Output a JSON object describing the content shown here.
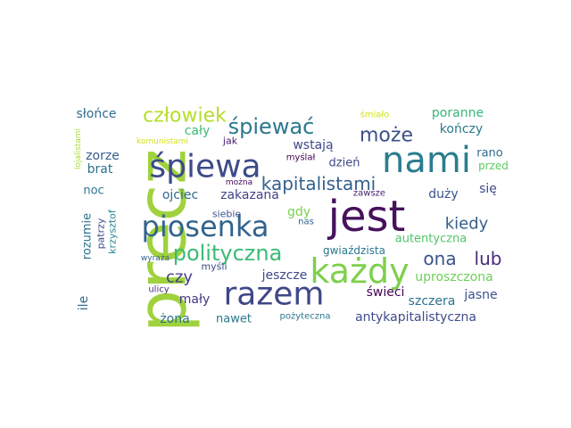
{
  "words": [
    {
      "text": "precz",
      "color": "#9fd23c"
    },
    {
      "text": "jest",
      "color": "#46125c"
    },
    {
      "text": "nami",
      "color": "#2b7d8e"
    },
    {
      "text": "śpiewa",
      "color": "#3e4b8a"
    },
    {
      "text": "każdy",
      "color": "#7ed04b"
    },
    {
      "text": "razem",
      "color": "#3f4788"
    },
    {
      "text": "piosenka",
      "color": "#33648d"
    },
    {
      "text": "polityczna",
      "color": "#3bbb75"
    },
    {
      "text": "śpiewać",
      "color": "#2a788e"
    },
    {
      "text": "kapitalistami",
      "color": "#34608d"
    },
    {
      "text": "człowiek",
      "color": "#b5de2b"
    },
    {
      "text": "może",
      "color": "#3c4f8a"
    },
    {
      "text": "kiedy",
      "color": "#355f8d"
    },
    {
      "text": "ona",
      "color": "#3b528b"
    },
    {
      "text": "lub",
      "color": "#472c7a"
    },
    {
      "text": "czy",
      "color": "#433e85"
    },
    {
      "text": "słońce",
      "color": "#2f6c8e"
    },
    {
      "text": "poranne",
      "color": "#35b779"
    },
    {
      "text": "kończy",
      "color": "#2a788e"
    },
    {
      "text": "cały",
      "color": "#3dbc74"
    },
    {
      "text": "zorze",
      "color": "#355e8d"
    },
    {
      "text": "brat",
      "color": "#2c738e"
    },
    {
      "text": "wstają",
      "color": "#3f4889"
    },
    {
      "text": "dzień",
      "color": "#3e4989"
    },
    {
      "text": "rano",
      "color": "#2f6c8e"
    },
    {
      "text": "przed",
      "color": "#5ec962"
    },
    {
      "text": "się",
      "color": "#3e4a89"
    },
    {
      "text": "noc",
      "color": "#2a768e"
    },
    {
      "text": "ojciec",
      "color": "#31688e"
    },
    {
      "text": "zakazana",
      "color": "#414487"
    },
    {
      "text": "duży",
      "color": "#3a548c"
    },
    {
      "text": "jak",
      "color": "#48186a"
    },
    {
      "text": "myślał",
      "color": "#440154"
    },
    {
      "text": "siebie",
      "color": "#3b528b"
    },
    {
      "text": "zawsze",
      "color": "#482173"
    },
    {
      "text": "gdy",
      "color": "#7ad151"
    },
    {
      "text": "nas",
      "color": "#31688e"
    },
    {
      "text": "rozumie",
      "color": "#2d708e"
    },
    {
      "text": "patrzy",
      "color": "#3f4788"
    },
    {
      "text": "krzysztof",
      "color": "#25858e"
    },
    {
      "text": "lojalistami",
      "color": "#addc30"
    },
    {
      "text": "komunistami",
      "color": "#d8e219"
    },
    {
      "text": "można",
      "color": "#46085c"
    },
    {
      "text": "śmiało",
      "color": "#d0e11c"
    },
    {
      "text": "autentyczna",
      "color": "#52c569"
    },
    {
      "text": "gwiaździsta",
      "color": "#2a788e"
    },
    {
      "text": "uproszczona",
      "color": "#6ece58"
    },
    {
      "text": "jeszcze",
      "color": "#3f4889"
    },
    {
      "text": "myśli",
      "color": "#3f4889"
    },
    {
      "text": "wyraża",
      "color": "#355f8d"
    },
    {
      "text": "ulicy",
      "color": "#46337e"
    },
    {
      "text": "mały",
      "color": "#443983"
    },
    {
      "text": "świeci",
      "color": "#440154"
    },
    {
      "text": "szczera",
      "color": "#2c728e"
    },
    {
      "text": "jasne",
      "color": "#3b528b"
    },
    {
      "text": "ile",
      "color": "#31688e"
    },
    {
      "text": "żona",
      "color": "#2c728e"
    },
    {
      "text": "nawet",
      "color": "#2a788e"
    },
    {
      "text": "pożyteczna",
      "color": "#2a788e"
    },
    {
      "text": "antykapitalistyczna",
      "color": "#3e4c8a"
    }
  ]
}
